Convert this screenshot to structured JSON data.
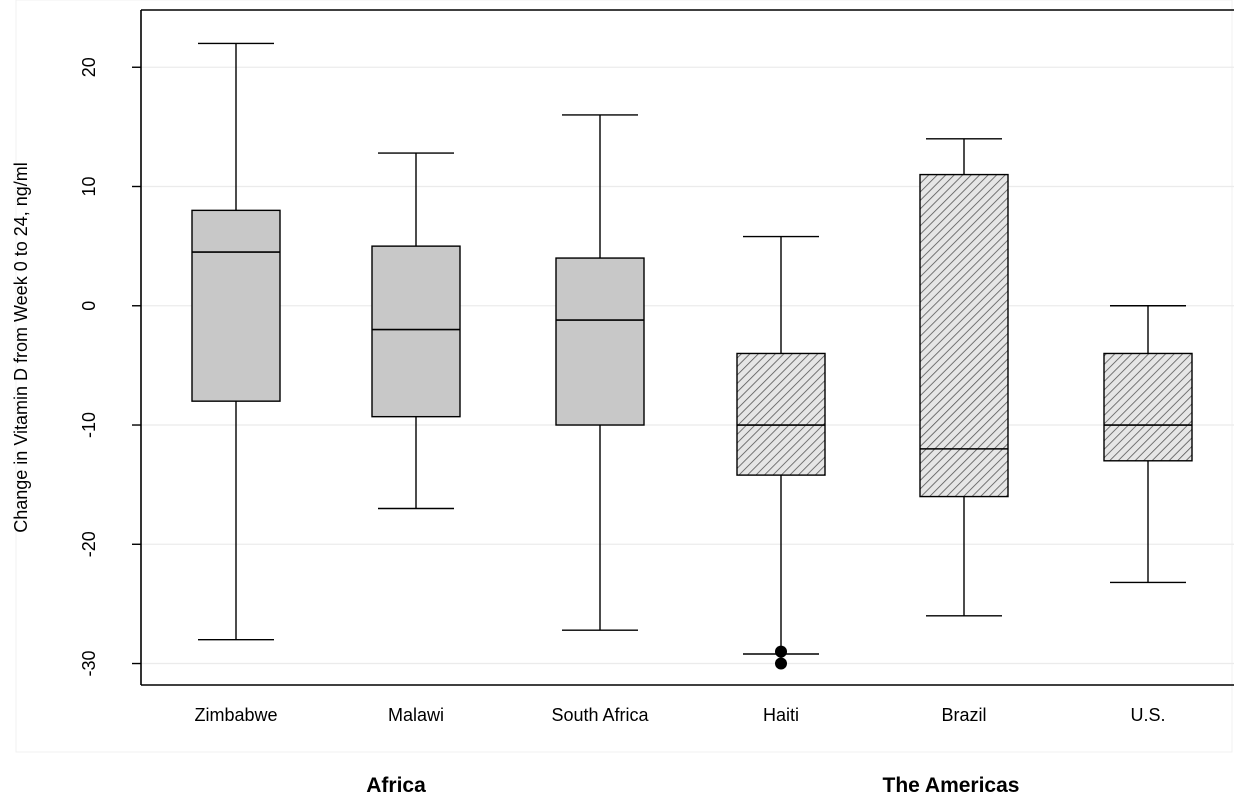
{
  "chart_data": {
    "type": "box",
    "ylabel": "Change in Vitamin D from Week 0 to 24, ng/ml",
    "yticks": [
      20,
      10,
      0,
      -10,
      -20,
      -30
    ],
    "ylim": [
      -31.8,
      24.8
    ],
    "grid": true,
    "categories": [
      "Zimbabwe",
      "Malawi",
      "South Africa",
      "Haiti",
      "Brazil",
      "U.S."
    ],
    "groups": [
      {
        "label": "Africa",
        "categories": [
          "Zimbabwe",
          "Malawi",
          "South Africa"
        ],
        "fill": "solid"
      },
      {
        "label": "The Americas",
        "categories": [
          "Haiti",
          "Brazil",
          "U.S."
        ],
        "fill": "hatched"
      }
    ],
    "boxes": [
      {
        "category": "Zimbabwe",
        "whisker_low": -28,
        "q1": -8,
        "median": 4.5,
        "q3": 8,
        "whisker_high": 22,
        "outliers": []
      },
      {
        "category": "Malawi",
        "whisker_low": -17,
        "q1": -9.3,
        "median": -2,
        "q3": 5,
        "whisker_high": 12.8,
        "outliers": []
      },
      {
        "category": "South Africa",
        "whisker_low": -27.2,
        "q1": -10,
        "median": -1.2,
        "q3": 4,
        "whisker_high": 16,
        "outliers": []
      },
      {
        "category": "Haiti",
        "whisker_low": -29.2,
        "q1": -14.2,
        "median": -10,
        "q3": -4,
        "whisker_high": 5.8,
        "outliers": [
          -29,
          -30
        ]
      },
      {
        "category": "Brazil",
        "whisker_low": -26,
        "q1": -16,
        "median": -12,
        "q3": 11,
        "whisker_high": 14,
        "outliers": []
      },
      {
        "category": "U.S.",
        "whisker_low": -23.2,
        "q1": -13,
        "median": -10,
        "q3": -4,
        "whisker_high": 0,
        "outliers": []
      }
    ],
    "colors": {
      "solid_fill": "#c8c8c8",
      "hatch_bg": "#e6e6e6",
      "hatch_line": "#555555",
      "stroke": "#000000",
      "grid": "#ebebeb"
    }
  }
}
